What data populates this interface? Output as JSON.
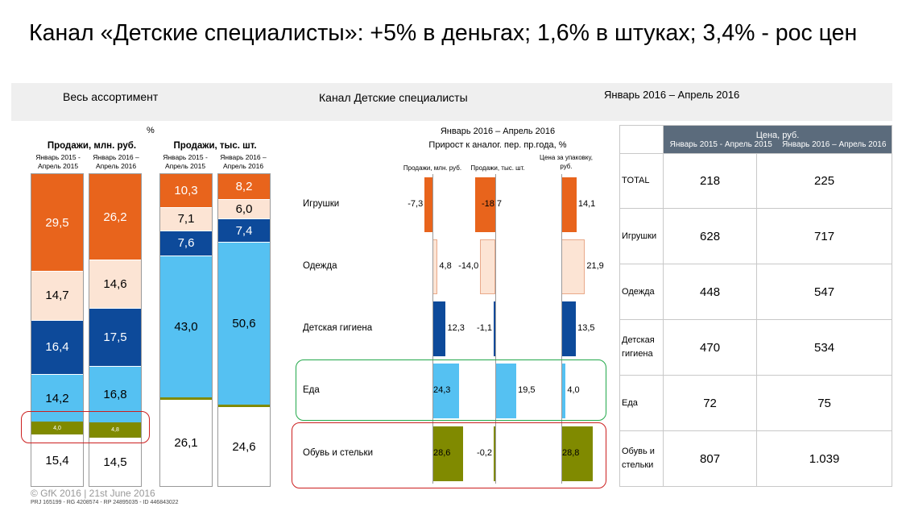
{
  "title": "Канал «Детские специалисты»: +5% в деньгах; 1,6% в штуках; 3,4% - рос цен",
  "band": {
    "left": "Весь ассортимент",
    "center": "Канал Детские специалисты",
    "right": "Январь 2016 – Апрель 2016"
  },
  "colors": {
    "toys": "#e8641c",
    "clothes": "#fce4d4",
    "hygiene": "#0d4a9a",
    "food": "#55c1f2",
    "shoes": "#808a00",
    "other": "#ffffff",
    "highlight_green": "#22a84a",
    "highlight_red": "#cc1f1f",
    "table_header": "#5b6b7c"
  },
  "chart_data": [
    {
      "type": "bar",
      "stacked": true,
      "percent_unit_label": "%",
      "title": "Продажи, млн. руб.",
      "categories": [
        "Январь 2015 - Апрель 2015",
        "Январь 2016 – Апрель 2016"
      ],
      "series": [
        {
          "name": "Игрушки",
          "values": [
            29.5,
            26.2
          ],
          "labels": [
            "29,5",
            "26,2"
          ]
        },
        {
          "name": "Одежда",
          "values": [
            14.7,
            14.6
          ],
          "labels": [
            "14,7",
            "14,6"
          ]
        },
        {
          "name": "Детская гигиена",
          "values": [
            16.4,
            17.5
          ],
          "labels": [
            "16,4",
            "17,5"
          ]
        },
        {
          "name": "Еда",
          "values": [
            14.2,
            16.8
          ],
          "labels": [
            "14,2",
            "16,8"
          ]
        },
        {
          "name": "Обувь и стельки",
          "values": [
            4.0,
            4.8
          ],
          "labels": [
            "4,0",
            "4,8"
          ]
        },
        {
          "name": "Прочее",
          "values": [
            15.4,
            14.5
          ],
          "labels": [
            "15,4",
            "14,5"
          ]
        }
      ]
    },
    {
      "type": "bar",
      "stacked": true,
      "title": "Продажи, тыс. шт.",
      "categories": [
        "Январь 2015 - Апрель 2015",
        "Январь 2016 – Апрель 2016"
      ],
      "series": [
        {
          "name": "Игрушки",
          "values": [
            10.3,
            8.2
          ],
          "labels": [
            "10,3",
            "8,2"
          ]
        },
        {
          "name": "Одежда",
          "values": [
            7.1,
            6.0
          ],
          "labels": [
            "7,1",
            "6,0"
          ]
        },
        {
          "name": "Детская гигиена",
          "values": [
            7.6,
            7.4
          ],
          "labels": [
            "7,6",
            "7,4"
          ]
        },
        {
          "name": "Еда",
          "values": [
            43.0,
            50.6
          ],
          "labels": [
            "43,0",
            "50,6"
          ]
        },
        {
          "name": "Обувь и стельки",
          "values": [
            1.0,
            1.0
          ],
          "labels": [
            "",
            ""
          ]
        },
        {
          "name": "Прочее",
          "values": [
            26.1,
            24.6
          ],
          "labels": [
            "26,1",
            "24,6"
          ]
        }
      ]
    },
    {
      "type": "bar",
      "orientation": "horizontal-panels",
      "title": "Январь 2016 – Апрель 2016",
      "subtitle": "Прирост к аналог. пер. пр.года, %",
      "columns": [
        "Продажи, млн. руб.",
        "Продажи, тыс. шт.",
        "Цена за упаковку, руб."
      ],
      "categories": [
        "Игрушки",
        "Одежда",
        "Детская гигиена",
        "Еда",
        "Обувь и стельки"
      ],
      "series": [
        {
          "name": "Продажи, млн. руб.",
          "values": [
            -7.3,
            4.8,
            12.3,
            24.3,
            28.6
          ],
          "labels": [
            "-7,3",
            "4,8",
            "12,3",
            "24,3",
            "28,6"
          ]
        },
        {
          "name": "Продажи, тыс. шт.",
          "values": [
            -18.7,
            -14.0,
            -1.1,
            19.5,
            -0.2
          ],
          "labels": [
            "-18,7",
            "-14,0",
            "-1,1",
            "19,5",
            "-0,2"
          ]
        },
        {
          "name": "Цена за упаковку, руб.",
          "values": [
            14.1,
            21.9,
            13.5,
            4.0,
            28.8
          ],
          "labels": [
            "14,1",
            "21,9",
            "13,5",
            "4,0",
            "28,8"
          ]
        }
      ]
    },
    {
      "type": "table",
      "header": "Цена, руб.",
      "columns": [
        "Январь 2015 - Апрель 2015",
        "Январь 2016 – Апрель 2016"
      ],
      "rows": [
        {
          "name": "TOTAL",
          "values": [
            "218",
            "225"
          ]
        },
        {
          "name": "Игрушки",
          "values": [
            "628",
            "717"
          ]
        },
        {
          "name": "Одежда",
          "values": [
            "448",
            "547"
          ]
        },
        {
          "name": "Детская гигиена",
          "values": [
            "470",
            "534"
          ]
        },
        {
          "name": "Еда",
          "values": [
            "72",
            "75"
          ]
        },
        {
          "name": "Обувь и стельки",
          "values": [
            "807",
            "1.039"
          ]
        }
      ]
    }
  ],
  "footer": {
    "copyright": "© GfK 2016 | 21st June 2016",
    "ids": "PRJ 165199 - RG 4208574 - RP 24895035 - ID 446843022"
  }
}
